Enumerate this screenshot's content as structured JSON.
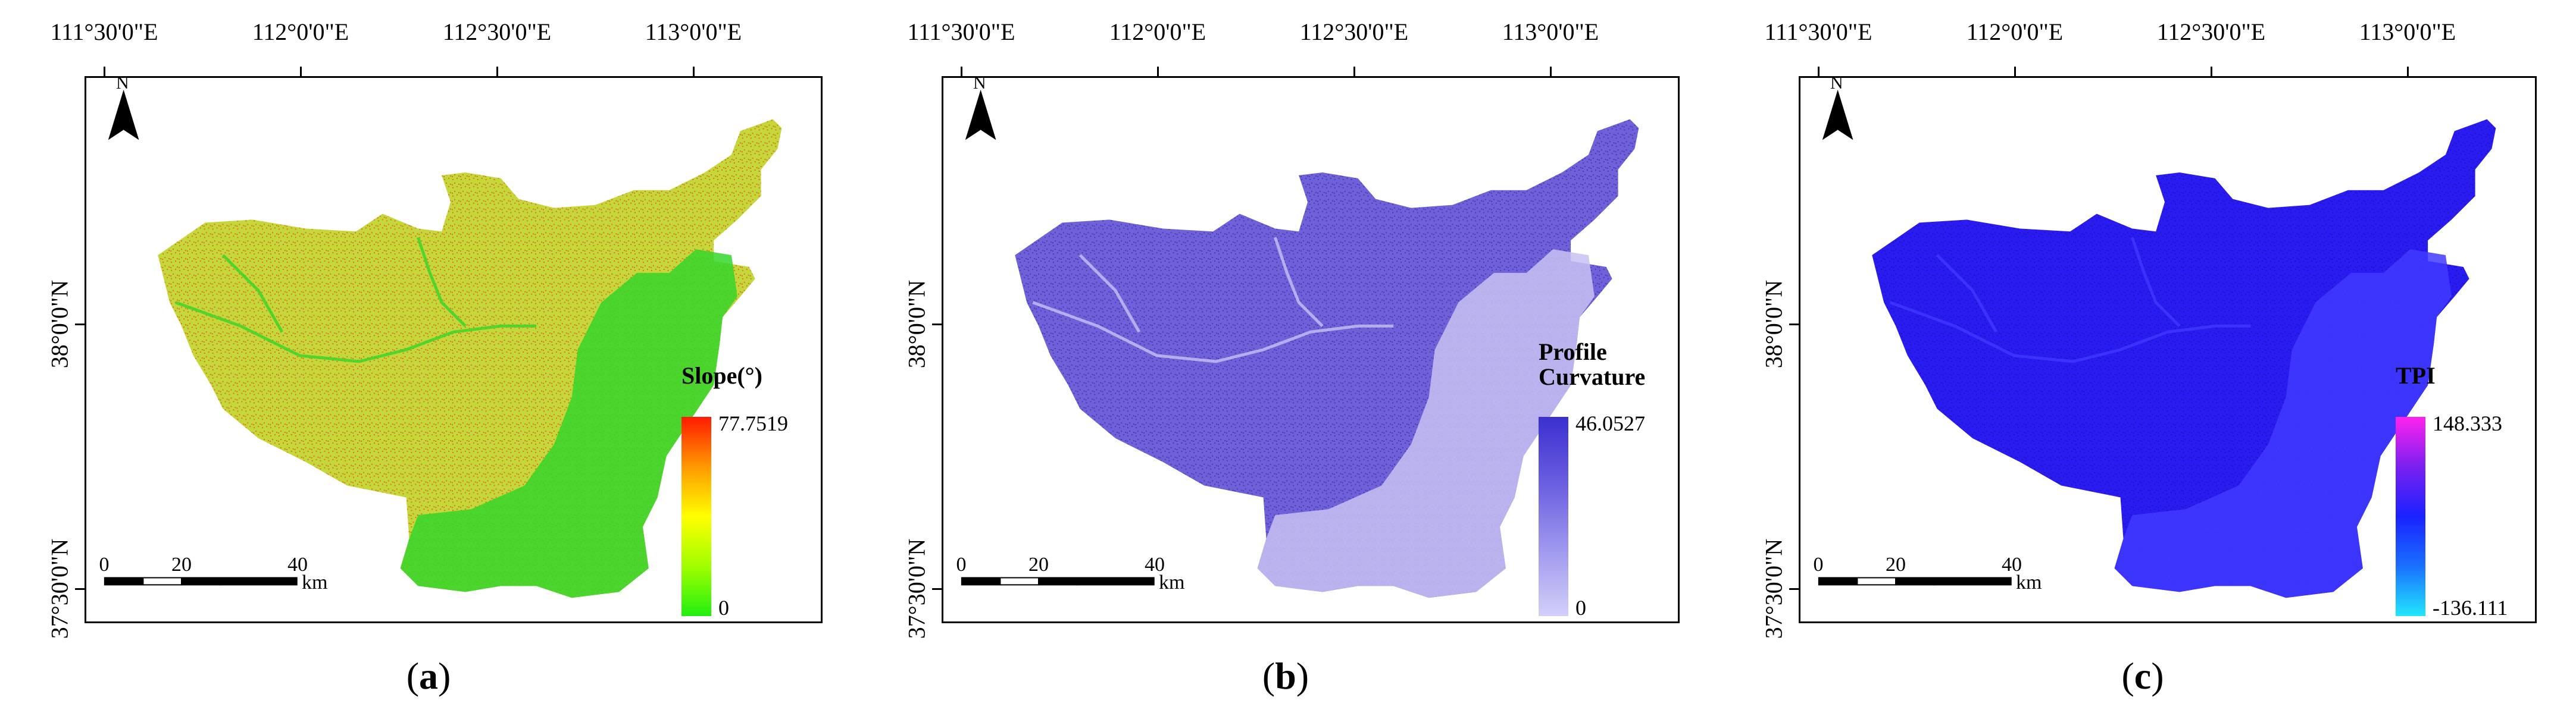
{
  "graticule": {
    "lon_labels": [
      "111°30'0\"E",
      "112°0'0\"E",
      "112°30'0\"E",
      "113°0'0\"E"
    ],
    "lat_labels": [
      "38°0'0\"N",
      "37°30'0\"N"
    ]
  },
  "north_arrow": {
    "label": "N",
    "icon": "north-arrow-icon"
  },
  "scale_bar": {
    "ticks": [
      "0",
      "20",
      "40"
    ],
    "unit": "km"
  },
  "panels": [
    {
      "caption_letter": "a",
      "legend": {
        "title_lines": [
          "Slope(°)"
        ],
        "max": "77.7519",
        "min": "0",
        "colors": [
          "#ff1a00",
          "#ff9900",
          "#ffff00",
          "#a0ff00",
          "#22ee11"
        ]
      },
      "map_colors": {
        "main": "#c4d83a",
        "accent": "#e25a1b",
        "light": "#36d62b"
      }
    },
    {
      "caption_letter": "b",
      "legend": {
        "title_lines": [
          "Profile",
          "Curvature"
        ],
        "max": "46.0527",
        "min": "0",
        "colors": [
          "#3b2fd0",
          "#6a5ee0",
          "#9f98ee",
          "#d2d0f8"
        ]
      },
      "map_colors": {
        "main": "#6f61d8",
        "accent": "#3e30b0",
        "light": "#c8c2f2"
      }
    },
    {
      "caption_letter": "c",
      "legend": {
        "title_lines": [
          "TPI"
        ],
        "max": "148.333",
        "min": "-136.111",
        "colors": [
          "#ff22ee",
          "#7a20f0",
          "#1a22ff",
          "#1a70ff",
          "#22e6ff"
        ]
      },
      "map_colors": {
        "main": "#2a1cf0",
        "accent": "#1410c0",
        "light": "#3f3aff"
      }
    }
  ]
}
